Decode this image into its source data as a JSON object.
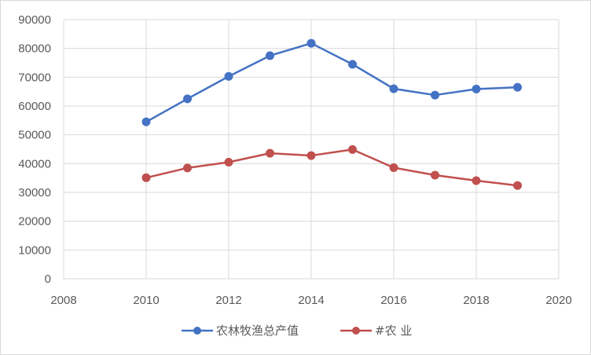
{
  "chart_data": {
    "type": "scatter",
    "xlim": [
      2008,
      2020
    ],
    "ylim": [
      0,
      90000
    ],
    "x_ticks": [
      2008,
      2010,
      2012,
      2014,
      2016,
      2018,
      2020
    ],
    "y_ticks": [
      0,
      10000,
      20000,
      30000,
      40000,
      50000,
      60000,
      70000,
      80000,
      90000
    ],
    "grid": true,
    "legend_position": "bottom",
    "series": [
      {
        "name": "农林牧渔总产值",
        "color": "#4472C4",
        "x": [
          2010,
          2011,
          2012,
          2013,
          2014,
          2015,
          2016,
          2017,
          2018,
          2019
        ],
        "y": [
          54500,
          62500,
          70300,
          77500,
          81800,
          74500,
          66000,
          63800,
          65900,
          66500
        ]
      },
      {
        "name": "#农  业",
        "color": "#C0504D",
        "x": [
          2010,
          2011,
          2012,
          2013,
          2014,
          2015,
          2016,
          2017,
          2018,
          2019
        ],
        "y": [
          35100,
          38500,
          40500,
          43600,
          42800,
          44900,
          38600,
          36000,
          34100,
          32400
        ]
      }
    ]
  }
}
